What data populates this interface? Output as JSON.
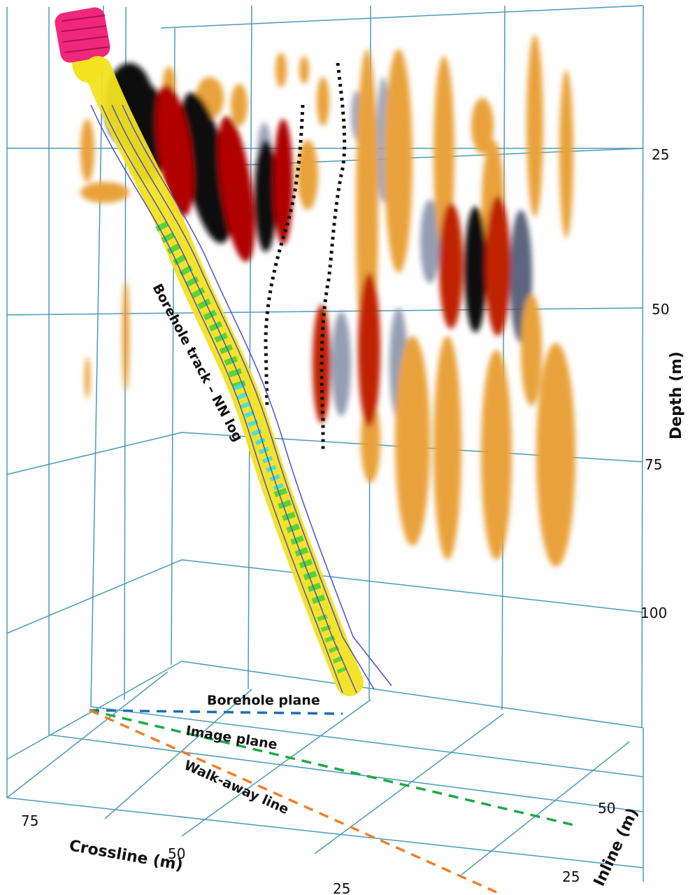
{
  "axes": {
    "depth": {
      "title": "Depth (m)",
      "ticks": [
        "25",
        "50",
        "75",
        "100"
      ]
    },
    "crossline": {
      "title": "Crossline (m)",
      "ticks": [
        "75",
        "50",
        "25"
      ]
    },
    "inline": {
      "title": "Inline (m)",
      "ticks": [
        "50",
        "25"
      ]
    }
  },
  "annotations": {
    "borehole_track": "Borehole track – NN log",
    "borehole_plane": "Borehole plane",
    "image_plane": "Image plane",
    "walkaway_line": "Walk-away line"
  },
  "colors": {
    "grid": "#4a9bb5",
    "borehole_plane": "#1f6fb0",
    "image_plane": "#1fa845",
    "walkaway_line": "#ef7f2a",
    "positive_amplitude": "#c00000",
    "positive_weak": "#e9a23a",
    "negative_amplitude": "#111111",
    "negative_weak": "#8a93aa",
    "borehole_log": "#f2e21f",
    "borehole_log_green": "#49d13a",
    "borehole_log_cyan": "#3ee0e0",
    "casing_top": "#f0287a"
  }
}
